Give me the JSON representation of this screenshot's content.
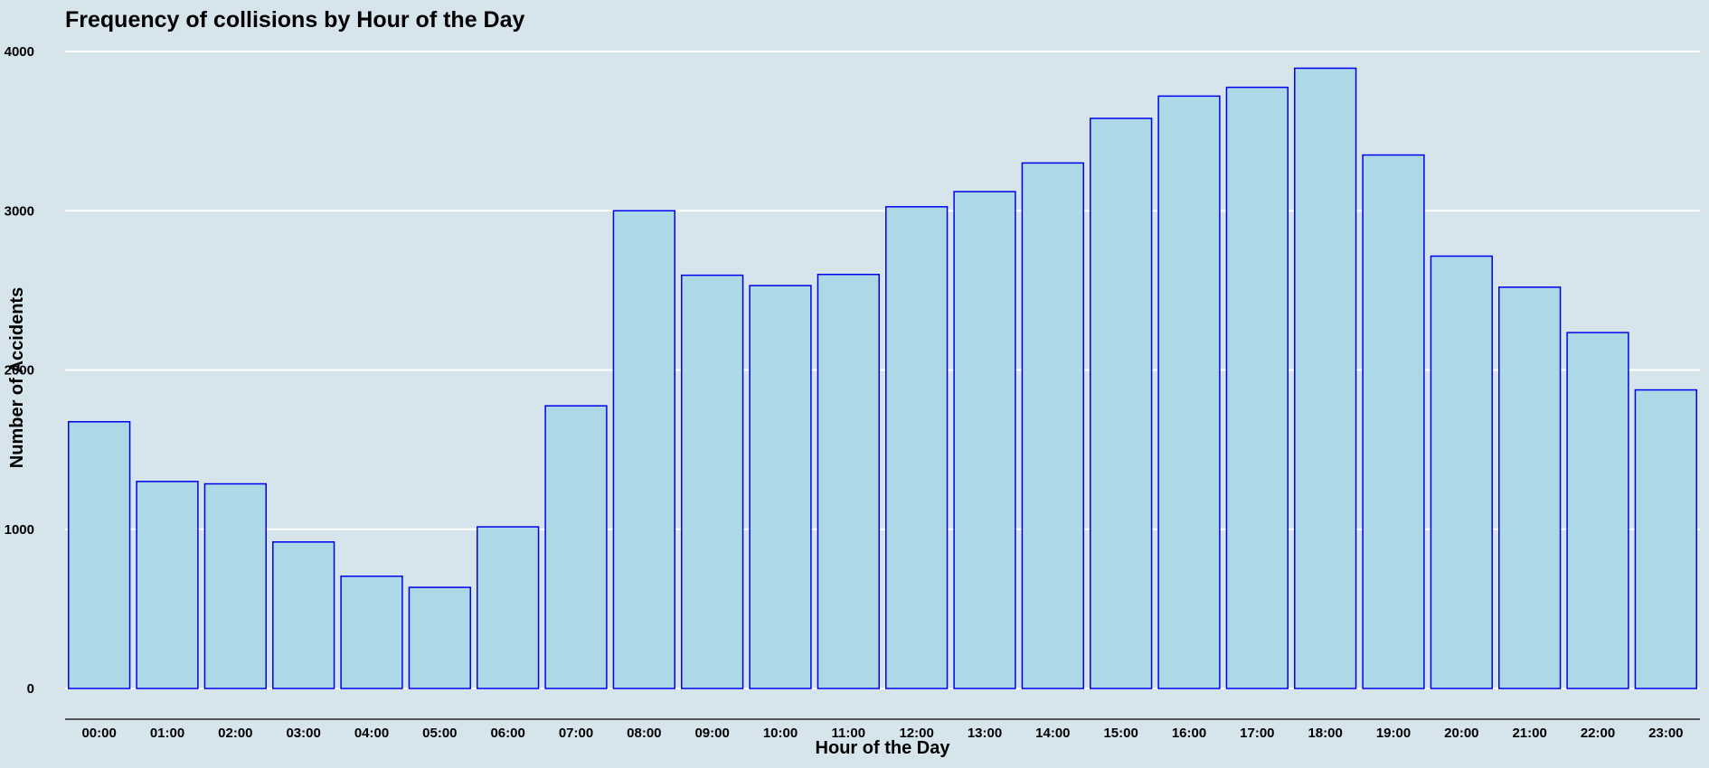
{
  "chart_data": {
    "type": "bar",
    "title": "Frequency of collisions by Hour of the Day",
    "xlabel": "Hour of the Day",
    "ylabel": "Number of Accidents",
    "categories": [
      "00:00",
      "01:00",
      "02:00",
      "03:00",
      "04:00",
      "05:00",
      "06:00",
      "07:00",
      "08:00",
      "09:00",
      "10:00",
      "11:00",
      "12:00",
      "13:00",
      "14:00",
      "15:00",
      "16:00",
      "17:00",
      "18:00",
      "19:00",
      "20:00",
      "21:00",
      "22:00",
      "23:00"
    ],
    "values": [
      1675,
      1300,
      1285,
      920,
      705,
      635,
      1015,
      1775,
      3000,
      2595,
      2530,
      2600,
      3025,
      3120,
      3300,
      3580,
      3720,
      3775,
      3895,
      3350,
      2715,
      2520,
      2235,
      1875
    ],
    "ylim": [
      0,
      4000
    ],
    "yticks": [
      0,
      1000,
      2000,
      3000,
      4000
    ],
    "grid": "horizontal",
    "colors": {
      "background": "#d6e4ec",
      "bar_fill": "#add8e6",
      "bar_stroke": "#0000ee",
      "grid": "#ffffff"
    }
  }
}
